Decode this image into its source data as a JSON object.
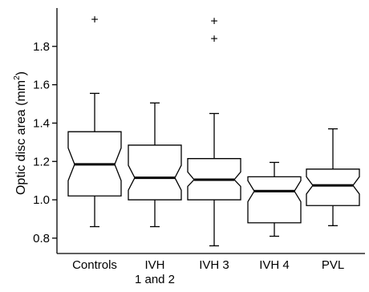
{
  "chart_data": {
    "type": "boxplot",
    "notched": true,
    "ylabel_main": "Optic disc area (mm",
    "ylabel_sup": "2",
    "ylabel_end": ")",
    "ylim": [
      0.72,
      2.0
    ],
    "yticks": [
      {
        "value": 0.8,
        "label": "0.8"
      },
      {
        "value": 1.0,
        "label": "1.0"
      },
      {
        "value": 1.2,
        "label": "1.2"
      },
      {
        "value": 1.4,
        "label": "1.4"
      },
      {
        "value": 1.6,
        "label": "1.6"
      },
      {
        "value": 1.8,
        "label": "1.8"
      }
    ],
    "categories": [
      {
        "label": [
          "Controls"
        ],
        "whisker_low": 0.86,
        "q1": 1.02,
        "notch_low": 1.1,
        "median": 1.185,
        "notch_high": 1.27,
        "q3": 1.355,
        "whisker_high": 1.555,
        "outliers": [
          1.94
        ]
      },
      {
        "label": [
          "IVH",
          "1 and 2"
        ],
        "whisker_low": 0.86,
        "q1": 1.0,
        "notch_low": 1.05,
        "median": 1.115,
        "notch_high": 1.18,
        "q3": 1.285,
        "whisker_high": 1.505,
        "outliers": []
      },
      {
        "label": [
          "IVH 3"
        ],
        "whisker_low": 0.76,
        "q1": 1.0,
        "notch_low": 1.07,
        "median": 1.105,
        "notch_high": 1.145,
        "q3": 1.215,
        "whisker_high": 1.45,
        "outliers": [
          1.84,
          1.93
        ]
      },
      {
        "label": [
          "IVH 4"
        ],
        "whisker_low": 0.81,
        "q1": 0.88,
        "notch_low": 0.99,
        "median": 1.045,
        "notch_high": 1.1,
        "q3": 1.12,
        "whisker_high": 1.195,
        "outliers": []
      },
      {
        "label": [
          "PVL"
        ],
        "whisker_low": 0.865,
        "q1": 0.97,
        "notch_low": 1.03,
        "median": 1.075,
        "notch_high": 1.12,
        "q3": 1.16,
        "whisker_high": 1.37,
        "outliers": []
      }
    ]
  }
}
